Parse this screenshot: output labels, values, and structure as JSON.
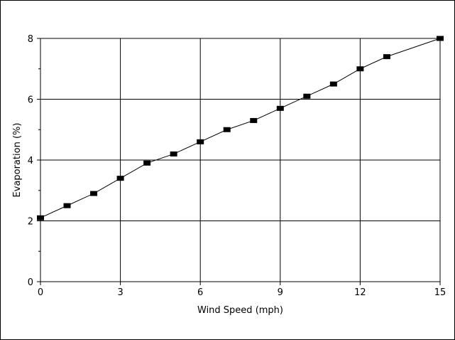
{
  "chart_data": {
    "type": "line",
    "title": "",
    "xlabel": "Wind Speed (mph)",
    "ylabel": "Evaporation (%)",
    "xlim": [
      0,
      15
    ],
    "ylim": [
      0,
      8
    ],
    "x_ticks": [
      0,
      3,
      6,
      9,
      12,
      15
    ],
    "y_ticks": [
      0,
      2,
      4,
      6,
      8
    ],
    "y_minor_ticks": [
      1,
      3,
      5,
      7
    ],
    "grid": true,
    "marker": "square",
    "colors": {
      "line": "#000000",
      "marker": "#000000",
      "grid": "#000000",
      "background": "#ffffff"
    },
    "series": [
      {
        "x": [
          0,
          1,
          2,
          3,
          4,
          5,
          6,
          7,
          8,
          9,
          10,
          11,
          12,
          13,
          15
        ],
        "y": [
          2.1,
          2.5,
          2.9,
          3.4,
          3.9,
          4.2,
          4.6,
          5.0,
          5.3,
          5.7,
          6.1,
          6.5,
          7.0,
          7.4,
          8.0
        ]
      }
    ]
  }
}
